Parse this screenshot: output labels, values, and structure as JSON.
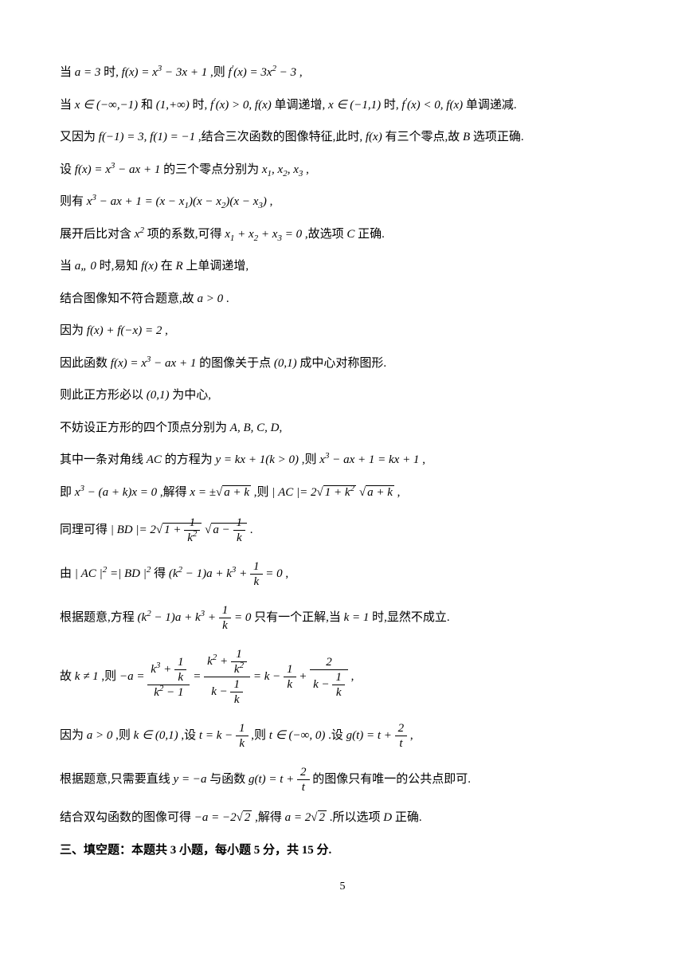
{
  "p1": {
    "t1": "当 ",
    "m1": "a = 3",
    "t2": " 时, ",
    "m2": "f(x) = x³ − 3x + 1",
    "t3": " ,则 ",
    "m3": "f′(x) = 3x² − 3",
    "t4": " ,"
  },
  "p2": {
    "t1": "当 ",
    "m1": "x ∈ (−∞,−1)",
    "t2": " 和 ",
    "m2": "(1,+∞)",
    "t3": " 时, ",
    "m3": "f′(x) > 0, f(x)",
    "t4": " 单调递增, ",
    "m4": "x ∈ (−1,1)",
    "t5": " 时, ",
    "m5": "f′(x) < 0, f(x)",
    "t6": " 单调递减."
  },
  "p3": {
    "t1": "又因为 ",
    "m1": "f(−1) = 3, f(1) = −1",
    "t2": " ,结合三次函数的图像特征,此时, ",
    "m2": "f(x)",
    "t3": " 有三个零点,故 ",
    "m3": "B",
    "t4": " 选项正确."
  },
  "p4": {
    "t1": "设 ",
    "m1": "f(x) = x³ − ax + 1",
    "t2": " 的三个零点分别为 ",
    "m2": "x₁, x₂, x₃",
    "t3": " ,"
  },
  "p5": {
    "t1": "则有 ",
    "m1": "x³ − ax + 1 = (x − x₁)(x − x₂)(x − x₃)",
    "t2": " ,"
  },
  "p6": {
    "t1": "展开后比对含 ",
    "m1": "x²",
    "t2": " 项的系数,可得 ",
    "m2": "x₁ + x₂ + x₃ = 0",
    "t3": " ,故选项 ",
    "m3": "C",
    "t4": " 正确."
  },
  "p7": {
    "t1": "当 ",
    "m1": "a„ 0",
    "t2": " 时,易知 ",
    "m2": "f(x)",
    "t3": " 在 ",
    "m3": "R",
    "t4": " 上单调递增,"
  },
  "p8": {
    "t1": "结合图像知不符合题意,故 ",
    "m1": "a > 0",
    "t2": " ."
  },
  "p9": {
    "t1": "因为 ",
    "m1": "f(x) + f(−x) = 2",
    "t2": " ,"
  },
  "p10": {
    "t1": "因此函数 ",
    "m1": "f(x) = x³ − ax + 1",
    "t2": " 的图像关于点 ",
    "m2": "(0,1)",
    "t3": " 成中心对称图形."
  },
  "p11": {
    "t1": "则此正方形必以 ",
    "m1": "(0,1)",
    "t2": " 为中心,"
  },
  "p12": {
    "t1": "不妨设正方形的四个顶点分别为 ",
    "m1": "A, B, C, D",
    "t2": ","
  },
  "p13": {
    "t1": "其中一条对角线 ",
    "m1": "AC",
    "t2": " 的方程为 ",
    "m2": "y = kx + 1(k > 0)",
    "t3": " ,则 ",
    "m3": "x³ − ax + 1 = kx + 1",
    "t4": " ,"
  },
  "p14": {
    "t1": "即 ",
    "m1": "x³ − (a + k)x = 0",
    "t2": " ,解得 ",
    "m2_pre": "x = ±",
    "m2_rad": "a + k",
    "t3": " ,则 ",
    "m3_pre": "| AC |= 2",
    "m3_rad1": "1 + k²",
    "m3_rad2": "a + k",
    "t4": " ,"
  },
  "p15": {
    "t1": "同理可得 ",
    "m1_pre": "| BD |= 2",
    "rad1_num": "1",
    "rad1_den": "k²",
    "rad2_num": "1",
    "rad2_den": "k",
    "t2": " ."
  },
  "p16": {
    "t1": "由 ",
    "m1": "| AC |² =| BD |²",
    "t2": " 得 ",
    "m2_a": "(k² − 1)a + k³ +",
    "m2_num": "1",
    "m2_den": "k",
    "m2_b": "= 0",
    "t3": " ,"
  },
  "p17": {
    "t1": "根据题意,方程 ",
    "m1_a": "(k² − 1)a + k³ +",
    "m1_num": "1",
    "m1_den": "k",
    "m1_b": "= 0",
    "t2": " 只有一个正解,当 ",
    "m2": "k = 1",
    "t3": " 时,显然不成立."
  },
  "p18": {
    "t1": "故 ",
    "m1": "k ≠ 1",
    "t2": " ,则 ",
    "m2": "−a =",
    "f1_num_a": "k³ +",
    "f1_num_n": "1",
    "f1_num_d": "k",
    "f1_den": "k² − 1",
    "eq1": "=",
    "f2_num_a": "k² +",
    "f2_num_n": "1",
    "f2_num_d": "k²",
    "f2_den_a": "k −",
    "f2_den_n": "1",
    "f2_den_d": "k",
    "eq2": "= k −",
    "f3_n": "1",
    "f3_d": "k",
    "plus": "+",
    "f4_n": "2",
    "f4_den_a": "k −",
    "f4_den_n": "1",
    "f4_den_d": "k",
    "t3": " ,"
  },
  "p19": {
    "t1": "因为 ",
    "m1": "a > 0",
    "t2": " ,则 ",
    "m2": "k ∈ (0,1)",
    "t3": " ,设 ",
    "m3_a": "t = k −",
    "m3_n": "1",
    "m3_d": "k",
    "t4": " ,则 ",
    "m4": "t ∈ (−∞, 0)",
    "t5": " .设 ",
    "m5_a": "g(t) = t +",
    "m5_n": "2",
    "m5_d": "t",
    "t6": " ,"
  },
  "p20": {
    "t1": "根据题意,只需要直线 ",
    "m1": "y = −a",
    "t2": " 与函数 ",
    "m2_a": "g(t) = t +",
    "m2_n": "2",
    "m2_d": "t",
    "t3": " 的图像只有唯一的公共点即可."
  },
  "p21": {
    "t1": "结合双勾函数的图像可得 ",
    "m1_a": "−a = −2",
    "m1_rad": "2",
    "t2": " ,解得 ",
    "m2_a": "a = 2",
    "m2_rad": "2",
    "t3": " .所以选项 ",
    "m3": "D",
    "t4": " 正确."
  },
  "section": "三、填空题：本题共 3 小题，每小题 5 分，共 15 分.",
  "pageNumber": "5"
}
